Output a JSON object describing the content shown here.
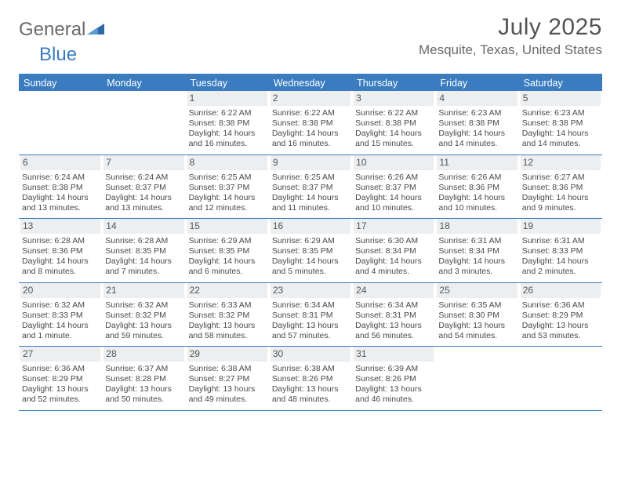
{
  "logo": {
    "general": "General",
    "blue": "Blue"
  },
  "title": "July 2025",
  "location": "Mesquite, Texas, United States",
  "colors": {
    "accent": "#3a7cbf",
    "header_bg": "#3a7cbf",
    "daynum_bg": "#eceef0",
    "text": "#4a4a4a",
    "title_text": "#545454"
  },
  "dow": [
    "Sunday",
    "Monday",
    "Tuesday",
    "Wednesday",
    "Thursday",
    "Friday",
    "Saturday"
  ],
  "weeks": [
    [
      {
        "n": "",
        "empty": true
      },
      {
        "n": "",
        "empty": true
      },
      {
        "n": "1",
        "sr": "Sunrise: 6:22 AM",
        "ss": "Sunset: 8:38 PM",
        "dl1": "Daylight: 14 hours",
        "dl2": "and 16 minutes."
      },
      {
        "n": "2",
        "sr": "Sunrise: 6:22 AM",
        "ss": "Sunset: 8:38 PM",
        "dl1": "Daylight: 14 hours",
        "dl2": "and 16 minutes."
      },
      {
        "n": "3",
        "sr": "Sunrise: 6:22 AM",
        "ss": "Sunset: 8:38 PM",
        "dl1": "Daylight: 14 hours",
        "dl2": "and 15 minutes."
      },
      {
        "n": "4",
        "sr": "Sunrise: 6:23 AM",
        "ss": "Sunset: 8:38 PM",
        "dl1": "Daylight: 14 hours",
        "dl2": "and 14 minutes."
      },
      {
        "n": "5",
        "sr": "Sunrise: 6:23 AM",
        "ss": "Sunset: 8:38 PM",
        "dl1": "Daylight: 14 hours",
        "dl2": "and 14 minutes."
      }
    ],
    [
      {
        "n": "6",
        "sr": "Sunrise: 6:24 AM",
        "ss": "Sunset: 8:38 PM",
        "dl1": "Daylight: 14 hours",
        "dl2": "and 13 minutes."
      },
      {
        "n": "7",
        "sr": "Sunrise: 6:24 AM",
        "ss": "Sunset: 8:37 PM",
        "dl1": "Daylight: 14 hours",
        "dl2": "and 13 minutes."
      },
      {
        "n": "8",
        "sr": "Sunrise: 6:25 AM",
        "ss": "Sunset: 8:37 PM",
        "dl1": "Daylight: 14 hours",
        "dl2": "and 12 minutes."
      },
      {
        "n": "9",
        "sr": "Sunrise: 6:25 AM",
        "ss": "Sunset: 8:37 PM",
        "dl1": "Daylight: 14 hours",
        "dl2": "and 11 minutes."
      },
      {
        "n": "10",
        "sr": "Sunrise: 6:26 AM",
        "ss": "Sunset: 8:37 PM",
        "dl1": "Daylight: 14 hours",
        "dl2": "and 10 minutes."
      },
      {
        "n": "11",
        "sr": "Sunrise: 6:26 AM",
        "ss": "Sunset: 8:36 PM",
        "dl1": "Daylight: 14 hours",
        "dl2": "and 10 minutes."
      },
      {
        "n": "12",
        "sr": "Sunrise: 6:27 AM",
        "ss": "Sunset: 8:36 PM",
        "dl1": "Daylight: 14 hours",
        "dl2": "and 9 minutes."
      }
    ],
    [
      {
        "n": "13",
        "sr": "Sunrise: 6:28 AM",
        "ss": "Sunset: 8:36 PM",
        "dl1": "Daylight: 14 hours",
        "dl2": "and 8 minutes."
      },
      {
        "n": "14",
        "sr": "Sunrise: 6:28 AM",
        "ss": "Sunset: 8:35 PM",
        "dl1": "Daylight: 14 hours",
        "dl2": "and 7 minutes."
      },
      {
        "n": "15",
        "sr": "Sunrise: 6:29 AM",
        "ss": "Sunset: 8:35 PM",
        "dl1": "Daylight: 14 hours",
        "dl2": "and 6 minutes."
      },
      {
        "n": "16",
        "sr": "Sunrise: 6:29 AM",
        "ss": "Sunset: 8:35 PM",
        "dl1": "Daylight: 14 hours",
        "dl2": "and 5 minutes."
      },
      {
        "n": "17",
        "sr": "Sunrise: 6:30 AM",
        "ss": "Sunset: 8:34 PM",
        "dl1": "Daylight: 14 hours",
        "dl2": "and 4 minutes."
      },
      {
        "n": "18",
        "sr": "Sunrise: 6:31 AM",
        "ss": "Sunset: 8:34 PM",
        "dl1": "Daylight: 14 hours",
        "dl2": "and 3 minutes."
      },
      {
        "n": "19",
        "sr": "Sunrise: 6:31 AM",
        "ss": "Sunset: 8:33 PM",
        "dl1": "Daylight: 14 hours",
        "dl2": "and 2 minutes."
      }
    ],
    [
      {
        "n": "20",
        "sr": "Sunrise: 6:32 AM",
        "ss": "Sunset: 8:33 PM",
        "dl1": "Daylight: 14 hours",
        "dl2": "and 1 minute."
      },
      {
        "n": "21",
        "sr": "Sunrise: 6:32 AM",
        "ss": "Sunset: 8:32 PM",
        "dl1": "Daylight: 13 hours",
        "dl2": "and 59 minutes."
      },
      {
        "n": "22",
        "sr": "Sunrise: 6:33 AM",
        "ss": "Sunset: 8:32 PM",
        "dl1": "Daylight: 13 hours",
        "dl2": "and 58 minutes."
      },
      {
        "n": "23",
        "sr": "Sunrise: 6:34 AM",
        "ss": "Sunset: 8:31 PM",
        "dl1": "Daylight: 13 hours",
        "dl2": "and 57 minutes."
      },
      {
        "n": "24",
        "sr": "Sunrise: 6:34 AM",
        "ss": "Sunset: 8:31 PM",
        "dl1": "Daylight: 13 hours",
        "dl2": "and 56 minutes."
      },
      {
        "n": "25",
        "sr": "Sunrise: 6:35 AM",
        "ss": "Sunset: 8:30 PM",
        "dl1": "Daylight: 13 hours",
        "dl2": "and 54 minutes."
      },
      {
        "n": "26",
        "sr": "Sunrise: 6:36 AM",
        "ss": "Sunset: 8:29 PM",
        "dl1": "Daylight: 13 hours",
        "dl2": "and 53 minutes."
      }
    ],
    [
      {
        "n": "27",
        "sr": "Sunrise: 6:36 AM",
        "ss": "Sunset: 8:29 PM",
        "dl1": "Daylight: 13 hours",
        "dl2": "and 52 minutes."
      },
      {
        "n": "28",
        "sr": "Sunrise: 6:37 AM",
        "ss": "Sunset: 8:28 PM",
        "dl1": "Daylight: 13 hours",
        "dl2": "and 50 minutes."
      },
      {
        "n": "29",
        "sr": "Sunrise: 6:38 AM",
        "ss": "Sunset: 8:27 PM",
        "dl1": "Daylight: 13 hours",
        "dl2": "and 49 minutes."
      },
      {
        "n": "30",
        "sr": "Sunrise: 6:38 AM",
        "ss": "Sunset: 8:26 PM",
        "dl1": "Daylight: 13 hours",
        "dl2": "and 48 minutes."
      },
      {
        "n": "31",
        "sr": "Sunrise: 6:39 AM",
        "ss": "Sunset: 8:26 PM",
        "dl1": "Daylight: 13 hours",
        "dl2": "and 46 minutes."
      },
      {
        "n": "",
        "empty": true
      },
      {
        "n": "",
        "empty": true
      }
    ]
  ]
}
